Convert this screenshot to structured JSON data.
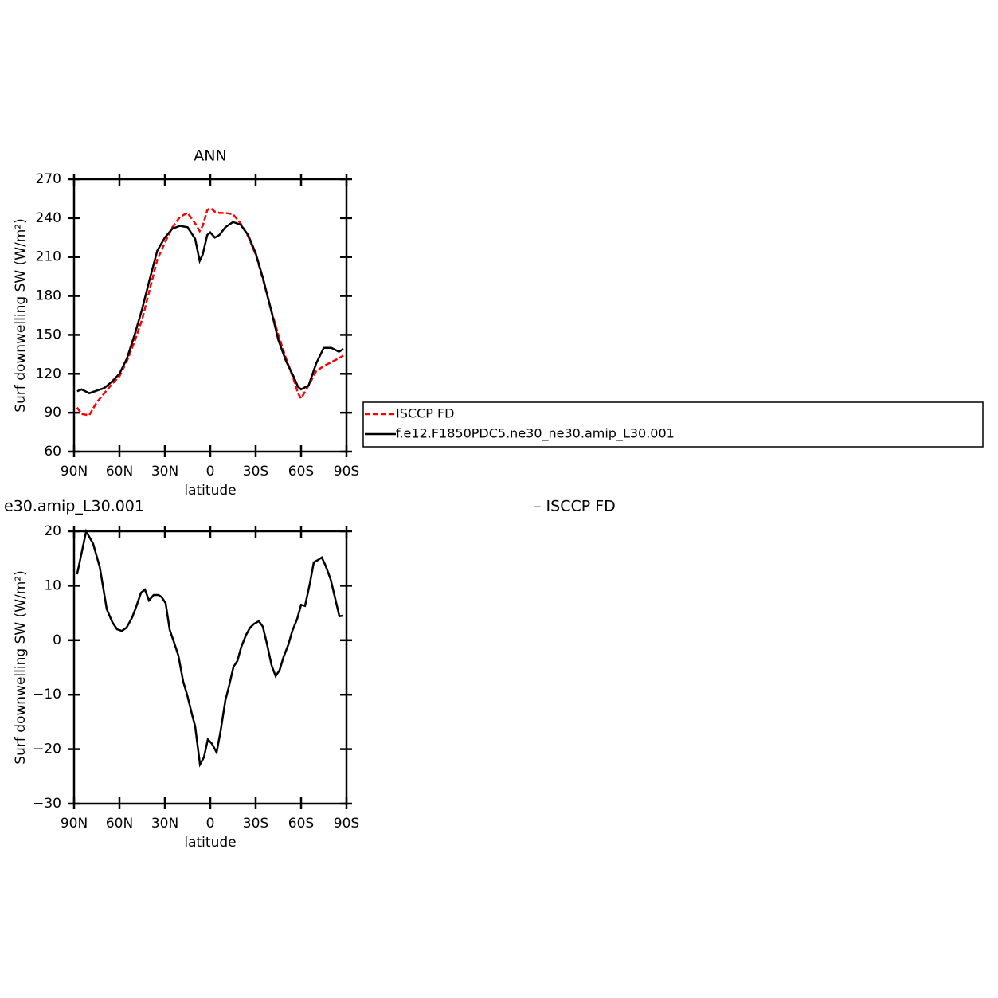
{
  "chart_data": [
    {
      "type": "line",
      "title": "ANN",
      "xlabel": "latitude",
      "ylabel": "Surf downwelling SW (W/m²)",
      "xlim": [
        90,
        -90
      ],
      "ylim": [
        60,
        270
      ],
      "xticks": [
        {
          "value": 90,
          "label": "90N"
        },
        {
          "value": 60,
          "label": "60N"
        },
        {
          "value": 30,
          "label": "30N"
        },
        0,
        {
          "value": -30,
          "label": "30S"
        },
        {
          "value": -60,
          "label": "60S"
        },
        {
          "value": -90,
          "label": "90S"
        }
      ],
      "yticks": [
        60,
        90,
        120,
        150,
        180,
        210,
        240,
        270
      ],
      "x": [
        88,
        85,
        80,
        75,
        70,
        65,
        60,
        55,
        50,
        45,
        40,
        35,
        30,
        25,
        20,
        15,
        10,
        7,
        5,
        2,
        0,
        -3,
        -6,
        -10,
        -15,
        -20,
        -25,
        -30,
        -35,
        -40,
        -45,
        -50,
        -55,
        -58,
        -60,
        -65,
        -70,
        -75,
        -80,
        -85,
        -88
      ],
      "series": [
        {
          "name": "ISCCP FD",
          "color": "#ff0000",
          "dashed": true,
          "values": [
            94,
            89,
            88,
            98,
            105,
            112,
            118,
            130,
            145,
            162,
            185,
            208,
            221,
            233,
            241,
            244,
            236,
            230,
            234,
            246,
            248,
            245,
            244,
            244,
            243,
            236,
            226,
            212,
            192,
            170,
            150,
            132,
            116,
            105,
            101,
            111,
            122,
            126,
            129,
            132,
            134
          ]
        },
        {
          "name": "f.e12.F1850PDC5.ne30_ne30.amip_L30.001",
          "color": "#000000",
          "dashed": false,
          "values": [
            106.5,
            108,
            105,
            107,
            109,
            114,
            120,
            132,
            150,
            170,
            193,
            215,
            225,
            232,
            234,
            233,
            224,
            207,
            212,
            227,
            229,
            225,
            227,
            233,
            237,
            235,
            227,
            213,
            193,
            170,
            146,
            130,
            118,
            110,
            108,
            111,
            128,
            140,
            140,
            137,
            139
          ]
        }
      ]
    },
    {
      "type": "line",
      "title_parts": [
        "e30.amip_L30.001",
        "– ISCCP FD"
      ],
      "xlabel": "latitude",
      "ylabel": "Surf downwelling SW (W/m²)",
      "xlim": [
        90,
        -90
      ],
      "ylim": [
        -30,
        20
      ],
      "xticks": [
        {
          "value": 90,
          "label": "90N"
        },
        {
          "value": 60,
          "label": "60N"
        },
        {
          "value": 30,
          "label": "30N"
        },
        0,
        {
          "value": -30,
          "label": "30S"
        },
        {
          "value": -60,
          "label": "60S"
        },
        {
          "value": -90,
          "label": "90S"
        }
      ],
      "yticks": [
        {
          "value": -30,
          "label": "−30"
        },
        {
          "value": -20,
          "label": "−20"
        },
        {
          "value": -10,
          "label": "−10"
        },
        0,
        10,
        20
      ],
      "color": "#000000",
      "x": [
        88,
        82,
        77.4,
        73,
        68.4,
        64.7,
        61.6,
        58.4,
        55.3,
        51.6,
        49,
        45.8,
        43.2,
        40.5,
        37.4,
        34.2,
        32.1,
        29.5,
        26.8,
        23.7,
        21.1,
        17.9,
        15.3,
        12.1,
        10,
        6.8,
        4.2,
        1.6,
        -1.1,
        -4.2,
        -6.8,
        -10,
        -12.6,
        -15.3,
        -17.9,
        -20.5,
        -23.7,
        -26.3,
        -28.9,
        -32.1,
        -34.7,
        -37.4,
        -40.5,
        -43.2,
        -45.8,
        -48.4,
        -51.6,
        -54.2,
        -57.4,
        -60,
        -62.6,
        -65.8,
        -68.4,
        -71,
        -73.7,
        -76.3,
        -79.5,
        -82.6,
        -85.3,
        -87.9
      ],
      "values": [
        12.1,
        20,
        17.7,
        13.4,
        5.7,
        3.3,
        2.0,
        1.7,
        2.3,
        4.2,
        6.1,
        8.7,
        9.3,
        7.3,
        8.3,
        8.3,
        7.9,
        6.8,
        1.9,
        -0.6,
        -2.8,
        -7.6,
        -10.0,
        -13.6,
        -15.8,
        -22.8,
        -21.5,
        -18.2,
        -19.0,
        -20.6,
        -16.7,
        -11.0,
        -8.2,
        -4.9,
        -3.8,
        -1.2,
        1.0,
        2.3,
        3.0,
        3.5,
        2.5,
        -0.6,
        -4.6,
        -6.6,
        -5.5,
        -3.1,
        -0.8,
        1.7,
        3.9,
        6.5,
        6.3,
        10.4,
        14.3,
        14.7,
        15.2,
        13.6,
        11.2,
        7.6,
        4.4,
        4.5
      ]
    }
  ]
}
